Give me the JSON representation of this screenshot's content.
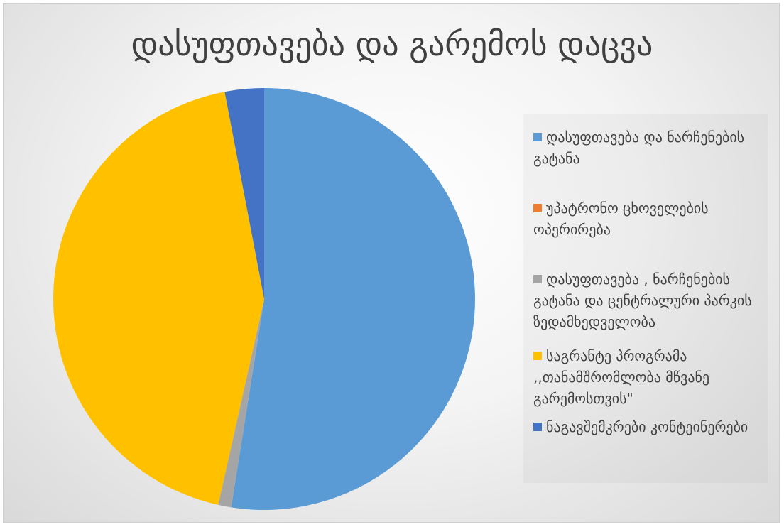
{
  "chart_data": {
    "type": "pie",
    "title": "დასუფთავება და გარემოს დაცვა",
    "legend_position": "right",
    "start_angle_deg": 0,
    "direction": "clockwise",
    "slices": [
      {
        "label": "დასუფთავება და ნარჩენების გატანა",
        "value": 52.5,
        "color": "#5B9BD5"
      },
      {
        "label": "უპატრონო ცხოველების ოპერირება",
        "value": 0.0,
        "color": "#ED7D31"
      },
      {
        "label": "დასუფთავება , ნარჩენების გატანა და ცენტრალური პარკის ზედამხედველობა",
        "value": 1.0,
        "color": "#A5A5A5"
      },
      {
        "label": "საგრანტე პროგრამა ,,თანამშრომლობა მწვანე გარემოსთვის\"",
        "value": 43.5,
        "color": "#FFC000"
      },
      {
        "label": "ნაგავშემკრები კონტეინერები",
        "value": 3.0,
        "color": "#4472C4"
      }
    ]
  }
}
